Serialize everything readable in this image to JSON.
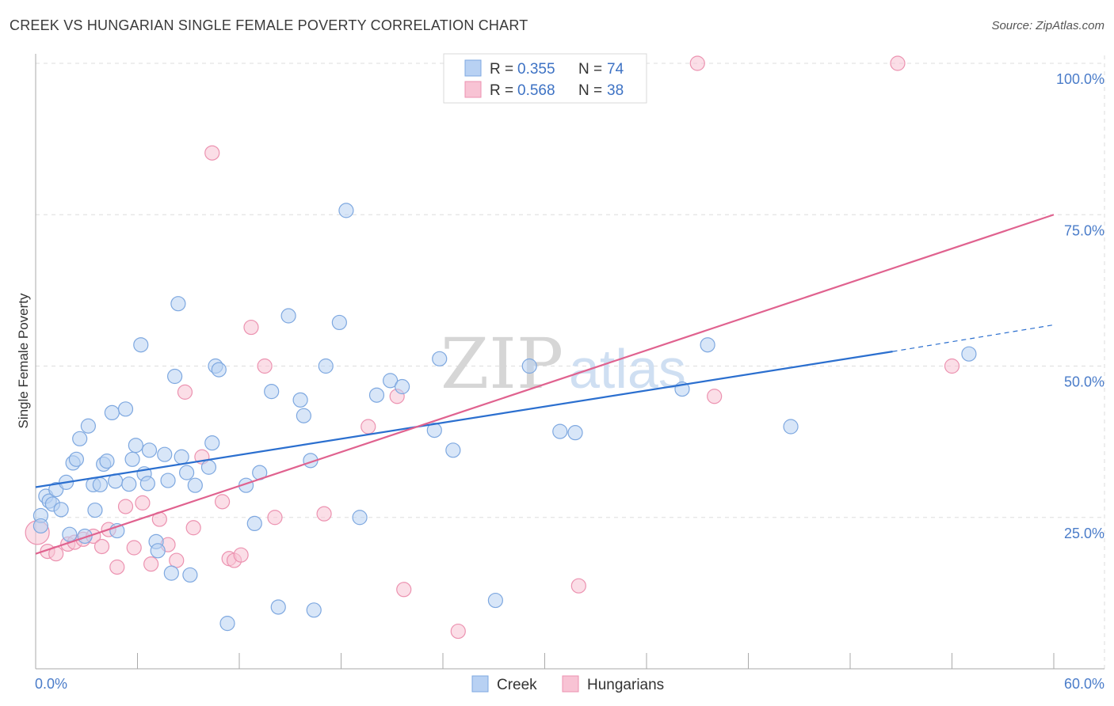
{
  "header": {
    "title": "CREEK VS HUNGARIAN SINGLE FEMALE POVERTY CORRELATION CHART",
    "source": "Source: ZipAtlas.com"
  },
  "watermark": {
    "zip": "ZIP",
    "atlas": "atlas"
  },
  "colors": {
    "creek_fill": "#b8d1f3",
    "creek_stroke": "#7ea8e0",
    "creek_line": "#2b6fcf",
    "hungarian_fill": "#f8c3d4",
    "hungarian_stroke": "#ec92b0",
    "hungarian_line": "#e0628f",
    "grid": "#dddddd",
    "tick_text": "#4a7cc9"
  },
  "chart_data": {
    "type": "scatter",
    "title": "CREEK VS HUNGARIAN SINGLE FEMALE POVERTY CORRELATION CHART",
    "xlabel": "",
    "ylabel": "Single Female Poverty",
    "xlim": [
      0,
      60
    ],
    "ylim": [
      0,
      102
    ],
    "x_tick_labels": {
      "left": "0.0%",
      "right": "60.0%"
    },
    "y_ticks": [
      {
        "value": 25,
        "label": "25.0%"
      },
      {
        "value": 50,
        "label": "50.0%"
      },
      {
        "value": 75,
        "label": "75.0%"
      },
      {
        "value": 100,
        "label": "100.0%"
      }
    ],
    "legend_stats": [
      {
        "r_label": "R =",
        "r": "0.355",
        "n_label": "N =",
        "n": "74"
      },
      {
        "r_label": "R =",
        "r": "0.568",
        "n_label": "N =",
        "n": "38"
      }
    ],
    "series": [
      {
        "name": "Creek",
        "trend": {
          "x1": 0,
          "y1": 30.0,
          "x2": 50.5,
          "y2": 52.4,
          "dash_x2": 60,
          "dash_y2": 56.8
        },
        "points": [
          [
            0.3,
            25.3
          ],
          [
            0.3,
            23.6
          ],
          [
            0.6,
            28.5
          ],
          [
            0.8,
            27.7
          ],
          [
            1.0,
            27.2
          ],
          [
            1.2,
            29.6
          ],
          [
            1.5,
            26.3
          ],
          [
            1.8,
            30.8
          ],
          [
            2.0,
            22.2
          ],
          [
            2.2,
            34.0
          ],
          [
            2.4,
            34.6
          ],
          [
            2.6,
            38.0
          ],
          [
            2.9,
            21.9
          ],
          [
            3.1,
            40.1
          ],
          [
            3.4,
            30.4
          ],
          [
            3.5,
            26.2
          ],
          [
            3.8,
            30.4
          ],
          [
            4.0,
            33.8
          ],
          [
            4.2,
            34.3
          ],
          [
            4.5,
            42.3
          ],
          [
            4.7,
            31.0
          ],
          [
            4.8,
            22.8
          ],
          [
            5.3,
            42.9
          ],
          [
            5.5,
            30.5
          ],
          [
            5.7,
            34.6
          ],
          [
            5.9,
            36.9
          ],
          [
            6.2,
            53.5
          ],
          [
            6.4,
            32.2
          ],
          [
            6.6,
            30.6
          ],
          [
            6.7,
            36.1
          ],
          [
            7.1,
            21.0
          ],
          [
            7.2,
            19.5
          ],
          [
            7.6,
            35.4
          ],
          [
            7.8,
            31.1
          ],
          [
            8.0,
            15.8
          ],
          [
            8.2,
            48.3
          ],
          [
            8.4,
            60.3
          ],
          [
            8.6,
            35.0
          ],
          [
            8.9,
            32.4
          ],
          [
            9.1,
            15.5
          ],
          [
            9.4,
            30.3
          ],
          [
            10.2,
            33.3
          ],
          [
            10.4,
            37.3
          ],
          [
            10.6,
            50.0
          ],
          [
            10.8,
            49.4
          ],
          [
            11.3,
            7.5
          ],
          [
            12.4,
            30.3
          ],
          [
            12.9,
            24.0
          ],
          [
            13.2,
            32.4
          ],
          [
            13.9,
            45.8
          ],
          [
            14.3,
            10.2
          ],
          [
            14.9,
            58.3
          ],
          [
            15.6,
            44.4
          ],
          [
            15.8,
            41.8
          ],
          [
            16.2,
            34.4
          ],
          [
            16.4,
            9.7
          ],
          [
            17.1,
            50.0
          ],
          [
            17.9,
            57.2
          ],
          [
            18.3,
            75.7
          ],
          [
            19.1,
            25.0
          ],
          [
            20.1,
            45.2
          ],
          [
            20.9,
            47.6
          ],
          [
            21.6,
            46.6
          ],
          [
            23.5,
            39.4
          ],
          [
            23.8,
            51.2
          ],
          [
            24.6,
            36.1
          ],
          [
            27.1,
            11.3
          ],
          [
            29.1,
            50.0
          ],
          [
            30.9,
            39.2
          ],
          [
            31.8,
            39.0
          ],
          [
            38.1,
            46.2
          ],
          [
            39.6,
            53.5
          ],
          [
            44.5,
            40.0
          ],
          [
            55.0,
            52.0
          ]
        ]
      },
      {
        "name": "Hungarians",
        "trend": {
          "x1": 0,
          "y1": 19.0,
          "x2": 60,
          "y2": 75.0
        },
        "points": [
          [
            0.1,
            22.5
          ],
          [
            0.7,
            19.4
          ],
          [
            1.2,
            19.0
          ],
          [
            1.9,
            20.6
          ],
          [
            2.3,
            20.9
          ],
          [
            2.8,
            21.4
          ],
          [
            3.4,
            21.9
          ],
          [
            3.9,
            20.2
          ],
          [
            4.3,
            23.0
          ],
          [
            4.8,
            16.8
          ],
          [
            5.3,
            26.8
          ],
          [
            5.8,
            20.0
          ],
          [
            6.3,
            27.4
          ],
          [
            6.8,
            17.3
          ],
          [
            7.3,
            24.7
          ],
          [
            7.8,
            20.5
          ],
          [
            8.3,
            17.9
          ],
          [
            8.8,
            45.7
          ],
          [
            9.3,
            23.3
          ],
          [
            9.8,
            35.0
          ],
          [
            10.4,
            85.2
          ],
          [
            11.0,
            27.6
          ],
          [
            11.4,
            18.2
          ],
          [
            11.7,
            17.9
          ],
          [
            12.1,
            18.8
          ],
          [
            12.7,
            56.4
          ],
          [
            13.5,
            50.0
          ],
          [
            14.1,
            25.0
          ],
          [
            17.0,
            25.6
          ],
          [
            19.6,
            40.0
          ],
          [
            21.3,
            45.0
          ],
          [
            21.7,
            13.1
          ],
          [
            24.9,
            6.2
          ],
          [
            32.0,
            13.7
          ],
          [
            40.0,
            45.0
          ],
          [
            39.0,
            100.0
          ],
          [
            50.8,
            100.0
          ],
          [
            54.0,
            50.0
          ]
        ]
      }
    ],
    "legend_bottom": [
      "Creek",
      "Hungarians"
    ]
  }
}
